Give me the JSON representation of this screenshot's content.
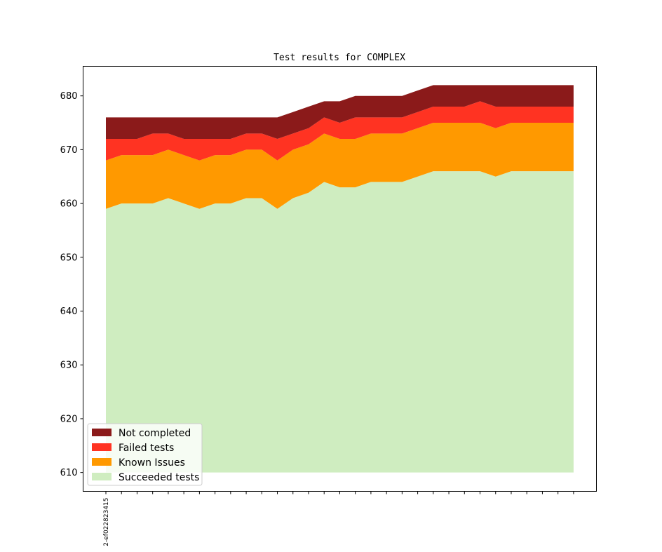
{
  "chart_data": {
    "type": "area",
    "stacked": true,
    "title": "Test results for COMPLEX",
    "xlabel": "",
    "ylabel": "",
    "ylim": [
      606.5,
      685.5
    ],
    "yticks": [
      610,
      620,
      630,
      640,
      650,
      660,
      670,
      680
    ],
    "baseline": 610,
    "x_count": 31,
    "x_tick_labels": [
      {
        "index": 0,
        "label": "2-ef022823415"
      }
    ],
    "grid": false,
    "legend_position": "lower-left",
    "series": [
      {
        "name": "Succeeded tests",
        "color": "#cfedc0",
        "cumulative_top": [
          659,
          660,
          660,
          660,
          661,
          660,
          659,
          660,
          660,
          661,
          661,
          659,
          661,
          662,
          664,
          663,
          663,
          664,
          664,
          664,
          665,
          666,
          666,
          666,
          666,
          665,
          666,
          666,
          666,
          666,
          666
        ]
      },
      {
        "name": "Known Issues",
        "color": "#ff9900",
        "cumulative_top": [
          668,
          669,
          669,
          669,
          670,
          669,
          668,
          669,
          669,
          670,
          670,
          668,
          670,
          671,
          673,
          672,
          672,
          673,
          673,
          673,
          674,
          675,
          675,
          675,
          675,
          674,
          675,
          675,
          675,
          675,
          675
        ]
      },
      {
        "name": "Failed tests",
        "color": "#ff3322",
        "cumulative_top": [
          672,
          672,
          672,
          673,
          673,
          672,
          672,
          672,
          672,
          673,
          673,
          672,
          673,
          674,
          676,
          675,
          676,
          676,
          676,
          676,
          677,
          678,
          678,
          678,
          679,
          678,
          678,
          678,
          678,
          678,
          678
        ]
      },
      {
        "name": "Not completed",
        "color": "#8b1a1a",
        "cumulative_top": [
          676,
          676,
          676,
          676,
          676,
          676,
          676,
          676,
          676,
          676,
          676,
          676,
          677,
          678,
          679,
          679,
          680,
          680,
          680,
          680,
          681,
          682,
          682,
          682,
          682,
          682,
          682,
          682,
          682,
          682,
          682
        ]
      }
    ],
    "legend": [
      "Not completed",
      "Failed tests",
      "Known Issues",
      "Succeeded tests"
    ]
  }
}
